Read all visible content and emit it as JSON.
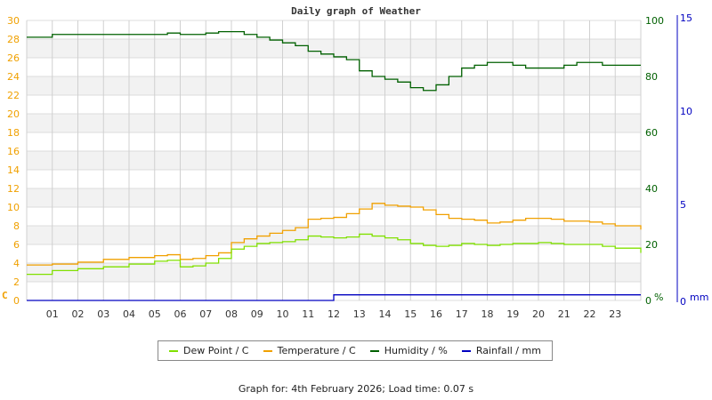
{
  "chart_data": {
    "type": "line",
    "title": "Daily graph of Weather",
    "xlabel": "",
    "x_ticks": [
      "01",
      "02",
      "03",
      "04",
      "05",
      "06",
      "07",
      "08",
      "09",
      "10",
      "11",
      "12",
      "13",
      "14",
      "15",
      "16",
      "17",
      "18",
      "19",
      "20",
      "21",
      "22",
      "23"
    ],
    "xlim": [
      0,
      24
    ],
    "axes": {
      "left": {
        "unit": "C",
        "ticks": [
          0,
          2,
          4,
          6,
          8,
          10,
          12,
          14,
          16,
          18,
          20,
          22,
          24,
          26,
          28,
          30
        ],
        "ylim": [
          0,
          30
        ],
        "color": "#f0a000"
      },
      "right1": {
        "unit": "%",
        "ticks": [
          0,
          20,
          40,
          60,
          80,
          100
        ],
        "ylim": [
          0,
          100
        ],
        "color": "#006000"
      },
      "right2": {
        "unit": "mm",
        "ticks": [
          0,
          5,
          10,
          15
        ],
        "ylim": [
          0,
          15
        ],
        "color": "#0000c0"
      }
    },
    "grid": true,
    "legend_position": "bottom",
    "x": [
      0,
      1,
      2,
      3,
      4,
      5,
      5.5,
      6,
      6.5,
      7,
      7.5,
      8,
      8.5,
      9,
      9.5,
      10,
      10.5,
      11,
      11.5,
      12,
      12.5,
      13,
      13.5,
      14,
      14.5,
      15,
      15.5,
      16,
      16.5,
      17,
      17.5,
      18,
      18.5,
      19,
      19.5,
      20,
      20.5,
      21,
      21.5,
      22,
      22.5,
      23,
      24
    ],
    "series": [
      {
        "name": "Dew Point / C",
        "axis": "left",
        "color": "#80e000",
        "values": [
          2.8,
          3.2,
          3.4,
          3.6,
          3.9,
          4.2,
          4.3,
          3.6,
          3.7,
          4.0,
          4.5,
          5.5,
          5.8,
          6.1,
          6.2,
          6.3,
          6.5,
          6.9,
          6.8,
          6.7,
          6.8,
          7.1,
          6.9,
          6.7,
          6.5,
          6.1,
          5.9,
          5.8,
          5.9,
          6.1,
          6.0,
          5.9,
          6.0,
          6.1,
          6.1,
          6.2,
          6.1,
          6.0,
          6.0,
          6.0,
          5.8,
          5.6,
          5.1
        ]
      },
      {
        "name": "Temperature / C",
        "axis": "left",
        "color": "#f0a000",
        "values": [
          3.8,
          3.9,
          4.1,
          4.4,
          4.6,
          4.8,
          4.9,
          4.4,
          4.5,
          4.8,
          5.1,
          6.2,
          6.6,
          6.9,
          7.2,
          7.5,
          7.8,
          8.7,
          8.8,
          8.9,
          9.3,
          9.8,
          10.4,
          10.2,
          10.1,
          10.0,
          9.7,
          9.2,
          8.8,
          8.7,
          8.6,
          8.3,
          8.4,
          8.6,
          8.8,
          8.8,
          8.7,
          8.5,
          8.5,
          8.4,
          8.2,
          8.0,
          7.6
        ]
      },
      {
        "name": "Humidity / %",
        "axis": "right1",
        "color": "#006000",
        "values": [
          94,
          95,
          95,
          95,
          95,
          95,
          95.5,
          95,
          95,
          95.5,
          96,
          96,
          95,
          94,
          93,
          92,
          91,
          89,
          88,
          87,
          86,
          82,
          80,
          79,
          78,
          76,
          75,
          77,
          80,
          83,
          84,
          85,
          85,
          84,
          83,
          83,
          83,
          84,
          85,
          85,
          84,
          84,
          84
        ]
      },
      {
        "name": "Rainfall / mm",
        "axis": "right2",
        "color": "#0000c0",
        "values": [
          0,
          0,
          0,
          0,
          0,
          0,
          0,
          0,
          0,
          0,
          0,
          0,
          0,
          0,
          0,
          0,
          0,
          0,
          0,
          0.3,
          0.3,
          0.3,
          0.3,
          0.3,
          0.3,
          0.3,
          0.3,
          0.3,
          0.3,
          0.3,
          0.3,
          0.3,
          0.3,
          0.3,
          0.3,
          0.3,
          0.3,
          0.3,
          0.3,
          0.3,
          0.3,
          0.3,
          0.3
        ]
      }
    ]
  },
  "legend": {
    "items": [
      {
        "label": "Dew Point / C",
        "color": "#80e000"
      },
      {
        "label": "Temperature / C",
        "color": "#f0a000"
      },
      {
        "label": "Humidity / %",
        "color": "#006000"
      },
      {
        "label": "Rainfall / mm",
        "color": "#0000c0"
      }
    ]
  },
  "footer": {
    "text": "Graph for: 4th February 2026; Load time: 0.07 s"
  }
}
